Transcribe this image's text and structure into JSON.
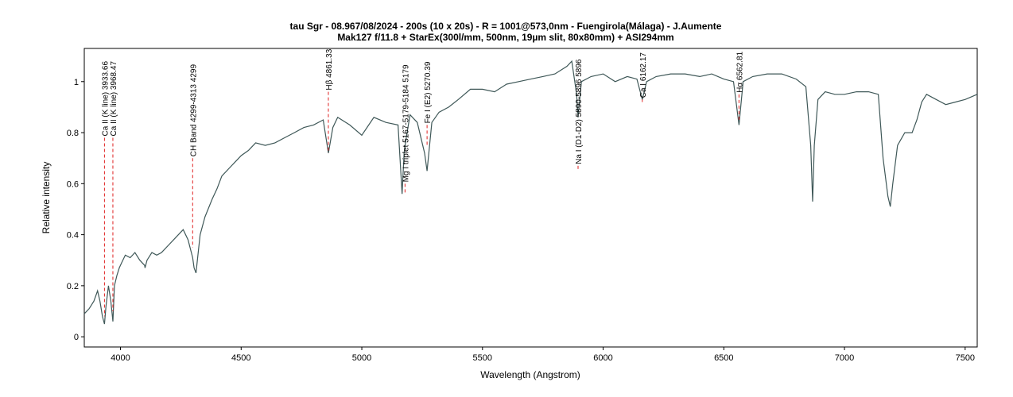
{
  "chart_data": {
    "type": "line",
    "title": "tau Sgr - 08.967/08/2024 - 200s (10 x 20s) - R = 1001@573,0nm - Fuengirola(Málaga) - J.Aumente",
    "subtitle": "Mak127 f/11.8 + StarEx(300l/mm, 500nm, 19µm slit, 80x80mm) + ASI294mm",
    "xlabel": "Wavelength (Angstrom)",
    "ylabel": "Relative intensity",
    "xlim": [
      3850,
      7550
    ],
    "ylim": [
      -0.04,
      1.13
    ],
    "xticks": [
      4000,
      4500,
      5000,
      5500,
      6000,
      6500,
      7000,
      7500
    ],
    "yticks": [
      0,
      0.2,
      0.4,
      0.6,
      0.8,
      1
    ],
    "xtick_labels": [
      "4000",
      "4500",
      "5000",
      "5500",
      "6000",
      "6500",
      "7000",
      "7500"
    ],
    "ytick_labels": [
      "0",
      "0.2",
      "0.4",
      "0.6",
      "0.8",
      "1"
    ],
    "grid": false,
    "colors": {
      "spectrum": "#3f5858",
      "line_marker": "#e02020",
      "frame": "#000000"
    },
    "series": [
      {
        "x": [
          3850,
          3870,
          3890,
          3905,
          3915,
          3925,
          3933.66,
          3940,
          3950,
          3960,
          3968.47,
          3975,
          3985,
          3995,
          4005,
          4020,
          4040,
          4060,
          4080,
          4100,
          4101.7,
          4110,
          4130,
          4150,
          4170,
          4200,
          4230,
          4260,
          4280,
          4299,
          4305,
          4313,
          4330,
          4350,
          4380,
          4400,
          4420,
          4450,
          4480,
          4500,
          4530,
          4560,
          4600,
          4640,
          4680,
          4720,
          4760,
          4800,
          4840,
          4861.33,
          4880,
          4900,
          4950,
          5000,
          5050,
          5100,
          5150,
          5167,
          5175,
          5184,
          5200,
          5230,
          5260,
          5270.39,
          5290,
          5320,
          5360,
          5400,
          5450,
          5500,
          5550,
          5600,
          5650,
          5700,
          5750,
          5800,
          5850,
          5870,
          5890,
          5896,
          5910,
          5950,
          6000,
          6050,
          6100,
          6140,
          6162.17,
          6180,
          6220,
          6280,
          6340,
          6400,
          6450,
          6500,
          6540,
          6562.81,
          6580,
          6620,
          6680,
          6740,
          6800,
          6840,
          6860,
          6868,
          6875,
          6890,
          6920,
          6960,
          7000,
          7050,
          7100,
          7140,
          7160,
          7180,
          7190,
          7200,
          7220,
          7250,
          7280,
          7300,
          7320,
          7340,
          7380,
          7420,
          7460,
          7500,
          7550
        ],
        "values": [
          0.09,
          0.11,
          0.14,
          0.18,
          0.14,
          0.08,
          0.05,
          0.12,
          0.2,
          0.14,
          0.06,
          0.2,
          0.24,
          0.27,
          0.29,
          0.32,
          0.31,
          0.33,
          0.3,
          0.28,
          0.27,
          0.3,
          0.33,
          0.32,
          0.33,
          0.36,
          0.39,
          0.42,
          0.38,
          0.31,
          0.27,
          0.25,
          0.4,
          0.47,
          0.54,
          0.58,
          0.63,
          0.66,
          0.69,
          0.71,
          0.73,
          0.76,
          0.75,
          0.76,
          0.78,
          0.8,
          0.82,
          0.83,
          0.85,
          0.72,
          0.82,
          0.86,
          0.83,
          0.79,
          0.86,
          0.84,
          0.83,
          0.56,
          0.72,
          0.78,
          0.87,
          0.84,
          0.72,
          0.65,
          0.84,
          0.88,
          0.9,
          0.93,
          0.97,
          0.97,
          0.96,
          0.99,
          1.0,
          1.01,
          1.02,
          1.03,
          1.06,
          1.08,
          0.95,
          0.86,
          1.0,
          1.02,
          1.03,
          1.0,
          1.02,
          1.01,
          0.93,
          1.0,
          1.02,
          1.03,
          1.03,
          1.02,
          1.03,
          1.01,
          1.0,
          0.83,
          1.0,
          1.02,
          1.03,
          1.03,
          1.01,
          0.98,
          0.75,
          0.53,
          0.75,
          0.93,
          0.96,
          0.95,
          0.95,
          0.96,
          0.96,
          0.95,
          0.7,
          0.55,
          0.51,
          0.6,
          0.75,
          0.8,
          0.8,
          0.85,
          0.92,
          0.95,
          0.93,
          0.91,
          0.92,
          0.93,
          0.95
        ]
      }
    ],
    "annotations": [
      {
        "label": "Ca II (K line) 3933.66",
        "x": 3933.66,
        "y_top": 0.78,
        "y_bottom": 0.08
      },
      {
        "label": "Ca II (K line) 3968.47",
        "x": 3968.47,
        "y_top": 0.78,
        "y_bottom": 0.1
      },
      {
        "label": "CH Band 4299-4313 4299",
        "x": 4299,
        "y_top": 0.7,
        "y_bottom": 0.35
      },
      {
        "label": "Hβ 4861.33",
        "x": 4861.33,
        "y_top": 0.96,
        "y_bottom": 0.72
      },
      {
        "label": "Mg I triplet 5167-5179-5184 5179",
        "x": 5179,
        "y_top": 0.6,
        "y_bottom": 0.56
      },
      {
        "label": "Fe I (E2) 5270.39",
        "x": 5270.39,
        "y_top": 0.83,
        "y_bottom": 0.75
      },
      {
        "label": "Na I (D1-D2) 5890-5896 5896",
        "x": 5896,
        "y_top": 0.67,
        "y_bottom": 0.65
      },
      {
        "label": "Ca I 6162.17",
        "x": 6162.17,
        "y_top": 0.93,
        "y_bottom": 0.92
      },
      {
        "label": "Hα 6562.81",
        "x": 6562.81,
        "y_top": 0.95,
        "y_bottom": 0.85
      }
    ]
  }
}
